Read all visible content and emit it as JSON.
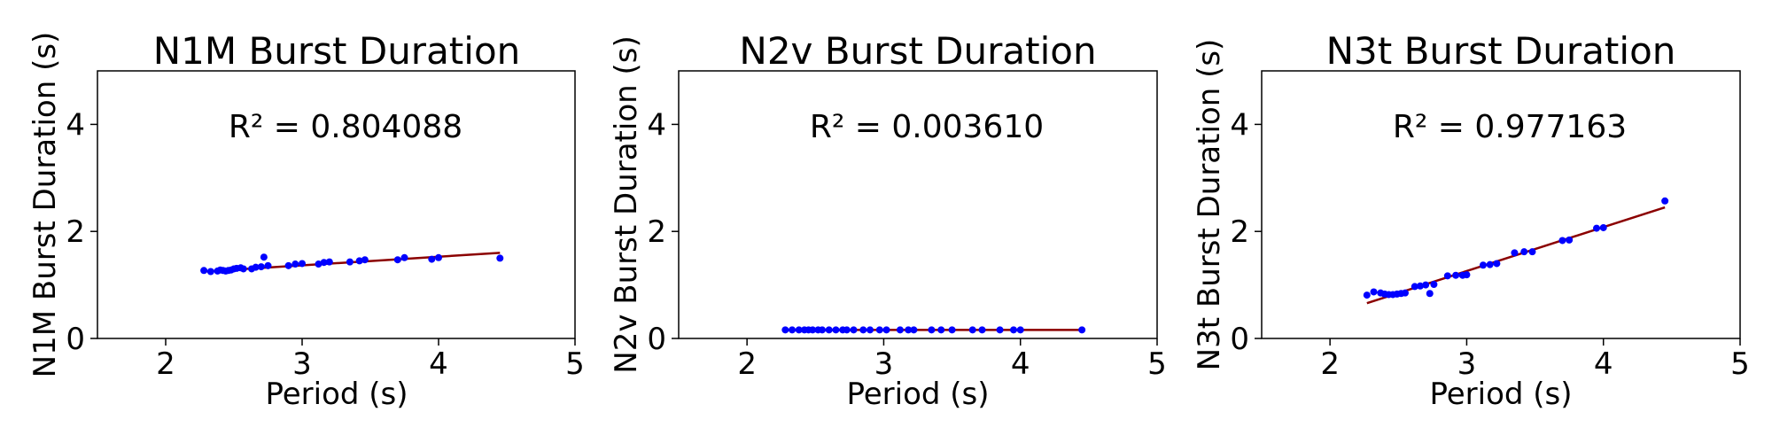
{
  "figure": {
    "background": "#ffffff"
  },
  "chart_data": [
    {
      "type": "scatter",
      "title": "N1M Burst Duration",
      "xlabel": "Period (s)",
      "ylabel": "N1M Burst Duration (s)",
      "xlim": [
        1.5,
        5
      ],
      "ylim": [
        0,
        5
      ],
      "xticks": [
        2,
        3,
        4,
        5
      ],
      "yticks": [
        0,
        2,
        4
      ],
      "annotation": "R² = 0.804088",
      "point_color": "#0000ff",
      "fit_color": "#8b0000",
      "series": [
        {
          "x": [
            2.28,
            2.33,
            2.38,
            2.4,
            2.42,
            2.44,
            2.46,
            2.48,
            2.5,
            2.52,
            2.55,
            2.57,
            2.63,
            2.66,
            2.7,
            2.72,
            2.75,
            2.9,
            2.95,
            3.0,
            3.12,
            3.16,
            3.2,
            3.35,
            3.42,
            3.46,
            3.7,
            3.75,
            3.95,
            4.0,
            4.45
          ],
          "y": [
            1.27,
            1.25,
            1.26,
            1.28,
            1.27,
            1.26,
            1.27,
            1.28,
            1.3,
            1.31,
            1.32,
            1.3,
            1.3,
            1.33,
            1.34,
            1.52,
            1.36,
            1.36,
            1.39,
            1.4,
            1.39,
            1.42,
            1.43,
            1.43,
            1.45,
            1.47,
            1.47,
            1.51,
            1.48,
            1.51,
            1.5
          ]
        }
      ],
      "fit_line": {
        "x": [
          2.28,
          4.45
        ],
        "y": [
          1.25,
          1.6
        ]
      }
    },
    {
      "type": "scatter",
      "title": "N2v Burst Duration",
      "xlabel": "Period (s)",
      "ylabel": "N2v Burst Duration (s)",
      "xlim": [
        1.5,
        5
      ],
      "ylim": [
        0,
        5
      ],
      "xticks": [
        2,
        3,
        4,
        5
      ],
      "yticks": [
        0,
        2,
        4
      ],
      "annotation": "R² = 0.003610",
      "point_color": "#0000ff",
      "fit_color": "#8b0000",
      "series": [
        {
          "x": [
            2.28,
            2.33,
            2.38,
            2.42,
            2.45,
            2.48,
            2.52,
            2.55,
            2.6,
            2.65,
            2.7,
            2.73,
            2.78,
            2.85,
            2.9,
            2.97,
            3.02,
            3.12,
            3.18,
            3.22,
            3.35,
            3.42,
            3.5,
            3.65,
            3.72,
            3.85,
            3.95,
            4.0,
            4.45
          ],
          "y": [
            0.16,
            0.16,
            0.16,
            0.16,
            0.16,
            0.16,
            0.16,
            0.16,
            0.16,
            0.16,
            0.16,
            0.16,
            0.16,
            0.16,
            0.16,
            0.16,
            0.16,
            0.16,
            0.16,
            0.16,
            0.16,
            0.16,
            0.16,
            0.16,
            0.16,
            0.16,
            0.16,
            0.16,
            0.16
          ]
        }
      ],
      "fit_line": {
        "x": [
          2.28,
          4.45
        ],
        "y": [
          0.16,
          0.16
        ]
      }
    },
    {
      "type": "scatter",
      "title": "N3t Burst Duration",
      "xlabel": "Period (s)",
      "ylabel": "N3t Burst Duration (s)",
      "xlim": [
        1.5,
        5
      ],
      "ylim": [
        0,
        5
      ],
      "xticks": [
        2,
        3,
        4,
        5
      ],
      "yticks": [
        0,
        2,
        4
      ],
      "annotation": "R² = 0.977163",
      "point_color": "#0000ff",
      "fit_color": "#8b0000",
      "series": [
        {
          "x": [
            2.27,
            2.32,
            2.37,
            2.4,
            2.43,
            2.46,
            2.49,
            2.52,
            2.55,
            2.62,
            2.66,
            2.7,
            2.73,
            2.76,
            2.86,
            2.92,
            2.97,
            3.0,
            3.12,
            3.17,
            3.22,
            3.35,
            3.42,
            3.48,
            3.7,
            3.75,
            3.95,
            4.0,
            4.45
          ],
          "y": [
            0.81,
            0.87,
            0.85,
            0.83,
            0.82,
            0.82,
            0.83,
            0.84,
            0.85,
            0.97,
            0.98,
            1.0,
            0.84,
            1.01,
            1.17,
            1.18,
            1.18,
            1.19,
            1.37,
            1.38,
            1.4,
            1.6,
            1.62,
            1.62,
            1.83,
            1.84,
            2.06,
            2.07,
            2.57
          ]
        }
      ],
      "fit_line": {
        "x": [
          2.27,
          4.45
        ],
        "y": [
          0.66,
          2.45
        ]
      }
    }
  ]
}
